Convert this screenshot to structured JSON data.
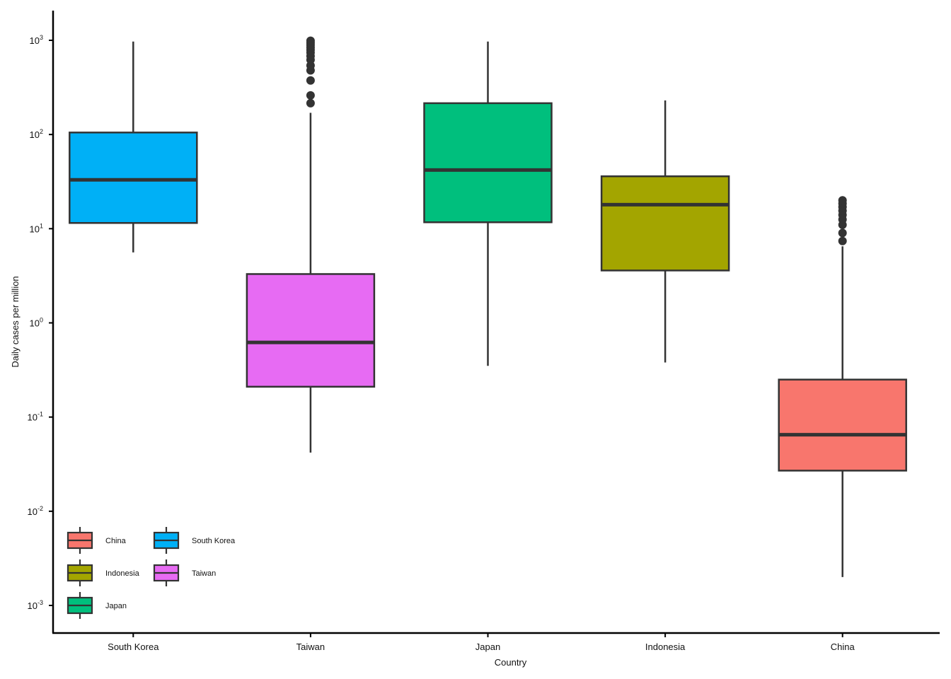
{
  "chart_data": {
    "type": "box",
    "title": "",
    "xlabel": "Country",
    "ylabel": "Daily cases per million",
    "y_scale": "log10",
    "ylim": [
      0.0007,
      1200
    ],
    "y_ticks": [
      {
        "value": 0.001,
        "base": "10",
        "exp": "-3"
      },
      {
        "value": 0.01,
        "base": "10",
        "exp": "-2"
      },
      {
        "value": 0.1,
        "base": "10",
        "exp": "-1"
      },
      {
        "value": 1,
        "base": "10",
        "exp": "0"
      },
      {
        "value": 10,
        "base": "10",
        "exp": "1"
      },
      {
        "value": 100,
        "base": "10",
        "exp": "2"
      },
      {
        "value": 1000,
        "base": "10",
        "exp": "3"
      }
    ],
    "categories": [
      "South Korea",
      "Taiwan",
      "Japan",
      "Indonesia",
      "China"
    ],
    "series": [
      {
        "name": "South Korea",
        "color": "#00B0F6",
        "whisker_low": 5.6,
        "q1": 11.5,
        "median": 33,
        "q3": 105,
        "whisker_high": 970,
        "outliers": []
      },
      {
        "name": "Taiwan",
        "color": "#E76BF3",
        "whisker_low": 0.042,
        "q1": 0.21,
        "median": 0.62,
        "q3": 3.3,
        "whisker_high": 170,
        "outliers": [
          215,
          260,
          375,
          480,
          540,
          620,
          680,
          740,
          790,
          840,
          890,
          940,
          990
        ]
      },
      {
        "name": "Japan",
        "color": "#00BF7D",
        "whisker_low": 0.35,
        "q1": 11.7,
        "median": 42,
        "q3": 215,
        "whisker_high": 970,
        "outliers": []
      },
      {
        "name": "Indonesia",
        "color": "#A3A500",
        "whisker_low": 0.38,
        "q1": 3.6,
        "median": 18,
        "q3": 36,
        "whisker_high": 230,
        "outliers": []
      },
      {
        "name": "China",
        "color": "#F8766D",
        "whisker_low": 0.002,
        "q1": 0.027,
        "median": 0.065,
        "q3": 0.25,
        "whisker_high": 6.5,
        "outliers": [
          7.4,
          9.0,
          11.0,
          12.5,
          14.0,
          15.5,
          17.0,
          18.5,
          20.0
        ]
      }
    ],
    "legend": {
      "placement": "bottom-left",
      "entries": [
        {
          "label": "China",
          "color": "#F8766D"
        },
        {
          "label": "South Korea",
          "color": "#00B0F6"
        },
        {
          "label": "Indonesia",
          "color": "#A3A500"
        },
        {
          "label": "Taiwan",
          "color": "#E76BF3"
        },
        {
          "label": "Japan",
          "color": "#00BF7D"
        }
      ]
    },
    "grid": false
  }
}
